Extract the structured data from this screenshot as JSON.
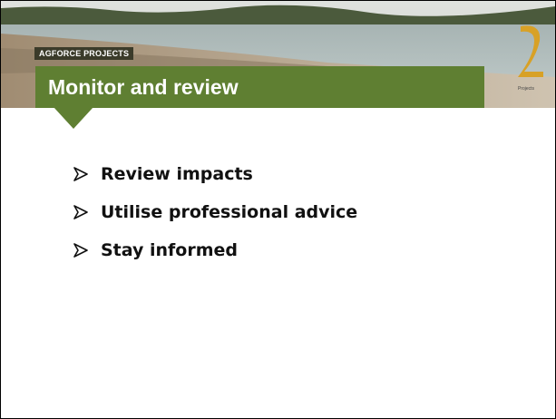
{
  "header": {
    "tag": "AGFORCE PROJECTS",
    "title": "Monitor and review",
    "logo_caption": "Projects"
  },
  "bullets": [
    "Review impacts",
    "Utilise professional advice",
    "Stay informed"
  ]
}
